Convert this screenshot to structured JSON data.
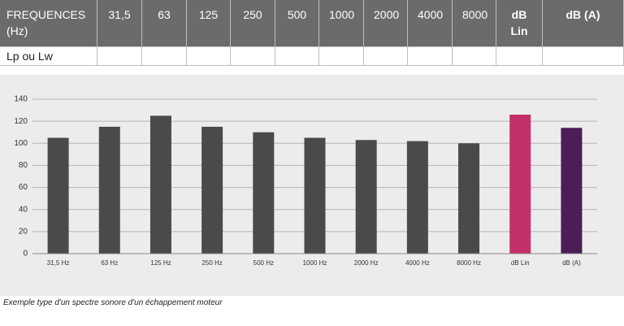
{
  "table": {
    "header": [
      "FREQUENCES (Hz)",
      "31,5",
      "63",
      "125",
      "250",
      "500",
      "1000",
      "2000",
      "4000",
      "8000",
      "dB Lin",
      "dB (A)"
    ],
    "row_label": "Lp ou Lw"
  },
  "chart_data": {
    "type": "bar",
    "categories": [
      "31,5 Hz",
      "63 Hz",
      "125 Hz",
      "250 Hz",
      "500 Hz",
      "1000 Hz",
      "2000 Hz",
      "4000 Hz",
      "8000 Hz",
      "dB Lin",
      "dB (A)"
    ],
    "values": [
      105,
      115,
      125,
      115,
      110,
      105,
      103,
      102,
      100,
      126,
      114
    ],
    "colors": [
      "#4a4a4a",
      "#4a4a4a",
      "#4a4a4a",
      "#4a4a4a",
      "#4a4a4a",
      "#4a4a4a",
      "#4a4a4a",
      "#4a4a4a",
      "#4a4a4a",
      "#c4306b",
      "#4b1e55"
    ],
    "ylim": [
      0,
      140
    ],
    "yticks": [
      0,
      20,
      40,
      60,
      80,
      100,
      120,
      140
    ],
    "grid": true
  },
  "caption": "Exemple type d'un spectre sonore d'un échappement moteur"
}
